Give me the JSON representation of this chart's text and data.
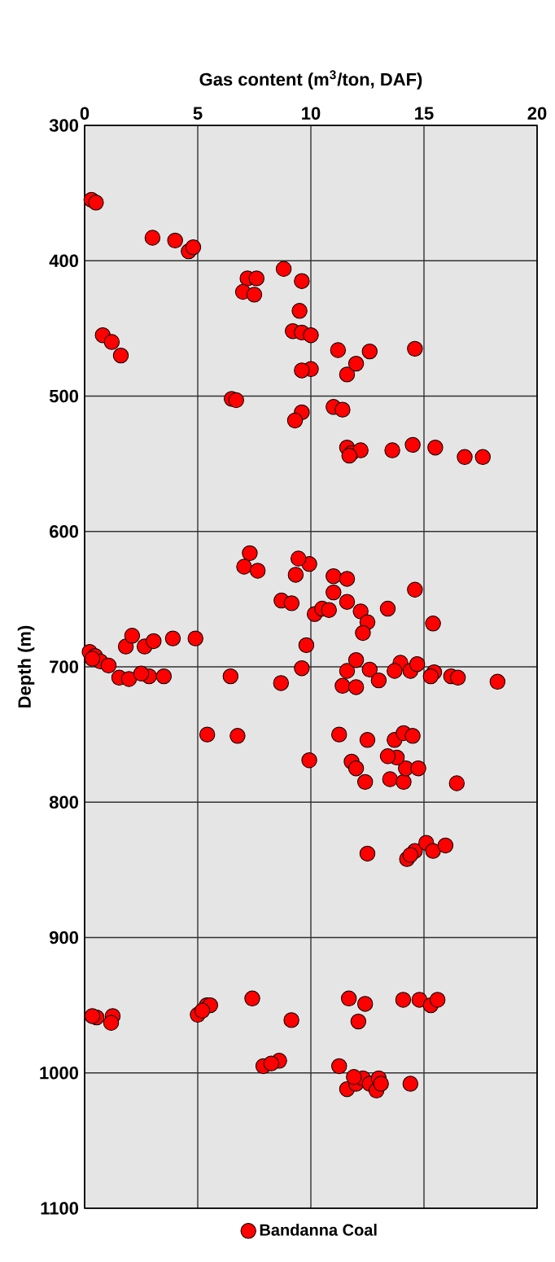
{
  "chart_data": {
    "type": "scatter",
    "xlabel": "Gas content (m$^{3}$/ton, DAF)",
    "ylabel": "Depth (m)",
    "xlim": [
      0,
      20
    ],
    "xticks": [
      0,
      5,
      10,
      15,
      20
    ],
    "ylim": [
      1100,
      300
    ],
    "yticks": [
      300,
      400,
      500,
      600,
      700,
      800,
      900,
      1000,
      1100
    ],
    "grid": true,
    "legend": "bottom",
    "marker": "circle",
    "series": [
      {
        "name": "Bandanna Coal",
        "color": "#ff0000",
        "x": [
          0.3,
          0.5,
          3,
          4,
          4.6,
          4.8,
          8.8,
          7.2,
          7.6,
          7,
          7.5,
          9.6,
          9.5,
          9.2,
          9.6,
          10,
          0.8,
          1.2,
          1.6,
          14.6,
          12.6,
          11.2,
          10,
          9.6,
          11.6,
          12.0,
          6.5,
          6.7,
          11,
          11.4,
          9.6,
          9.3,
          11.6,
          11.8,
          12.2,
          13.6,
          14.5,
          15.5,
          16.8,
          17.6,
          11.7,
          7.3,
          7.05,
          7.65,
          9.33,
          9.93,
          9.45,
          11.0,
          11.6,
          8.7,
          9.15,
          11.0,
          11.6,
          12.2,
          12.5,
          12.3,
          13.4,
          14.6,
          15.4,
          10.17,
          10.5,
          10.8,
          0.22,
          0.46,
          0.7,
          1.06,
          0.34,
          1.82,
          2.1,
          2.65,
          3.05,
          3.9,
          4.9,
          1.53,
          1.96,
          2.85,
          3.5,
          2.5,
          6.45,
          8.68,
          9.6,
          9.8,
          11.6,
          12.0,
          12.6,
          11.4,
          12.0,
          13.0,
          13.96,
          13.7,
          14.4,
          14.7,
          15.45,
          15.3,
          16.2,
          16.5,
          18.25,
          5.42,
          6.76,
          11.25,
          12.5,
          13.7,
          14.1,
          14.5,
          9.93,
          11.8,
          12.0,
          12.4,
          13.5,
          14.1,
          14.2,
          14.75,
          13.8,
          13.4,
          16.45,
          12.5,
          14.25,
          14.6,
          15.1,
          15.4,
          15.95,
          14.4,
          0.53,
          1.24,
          1.17,
          0.34,
          5.0,
          5.4,
          5.55,
          5.2,
          7.41,
          9.14,
          11.68,
          12.4,
          12.1,
          14.08,
          14.8,
          15.3,
          15.6,
          7.9,
          8.6,
          8.25,
          11.25,
          11.6,
          12.0,
          12.3,
          12.6,
          13.0,
          12.9,
          14.4,
          13.1,
          11.9
        ],
        "values": [
          355,
          357,
          383,
          385,
          393,
          390,
          406,
          413,
          413,
          423,
          425,
          415,
          437,
          452,
          453,
          455,
          455,
          460,
          470,
          465,
          467,
          466,
          480,
          481,
          484,
          476,
          502,
          503,
          508,
          510,
          512,
          518,
          538,
          542,
          540,
          540,
          536,
          538,
          545,
          545,
          544,
          616,
          626,
          629,
          632,
          624,
          620,
          633,
          635,
          651,
          653,
          645,
          652,
          659,
          667,
          675,
          657,
          643,
          668,
          661,
          657,
          658,
          689,
          692,
          696,
          699,
          694,
          685,
          677,
          685,
          681,
          679,
          679,
          708,
          709,
          707,
          707,
          705,
          707,
          712,
          701,
          684,
          703,
          695,
          702,
          714,
          715,
          710,
          697,
          703,
          703,
          698,
          704,
          707,
          707,
          708,
          711,
          750,
          751,
          750,
          754,
          754,
          749,
          751,
          769,
          770,
          775,
          785,
          783,
          785,
          775,
          775,
          767,
          766,
          786,
          838,
          842,
          836,
          830,
          836,
          832,
          839,
          959,
          958,
          963,
          958,
          957,
          950,
          950,
          954,
          945,
          961,
          945,
          949,
          962,
          946,
          946,
          950,
          946,
          995,
          991,
          993,
          995,
          1012,
          1008,
          1004,
          1008,
          1004,
          1013,
          1008,
          1008,
          1003
        ]
      }
    ]
  }
}
